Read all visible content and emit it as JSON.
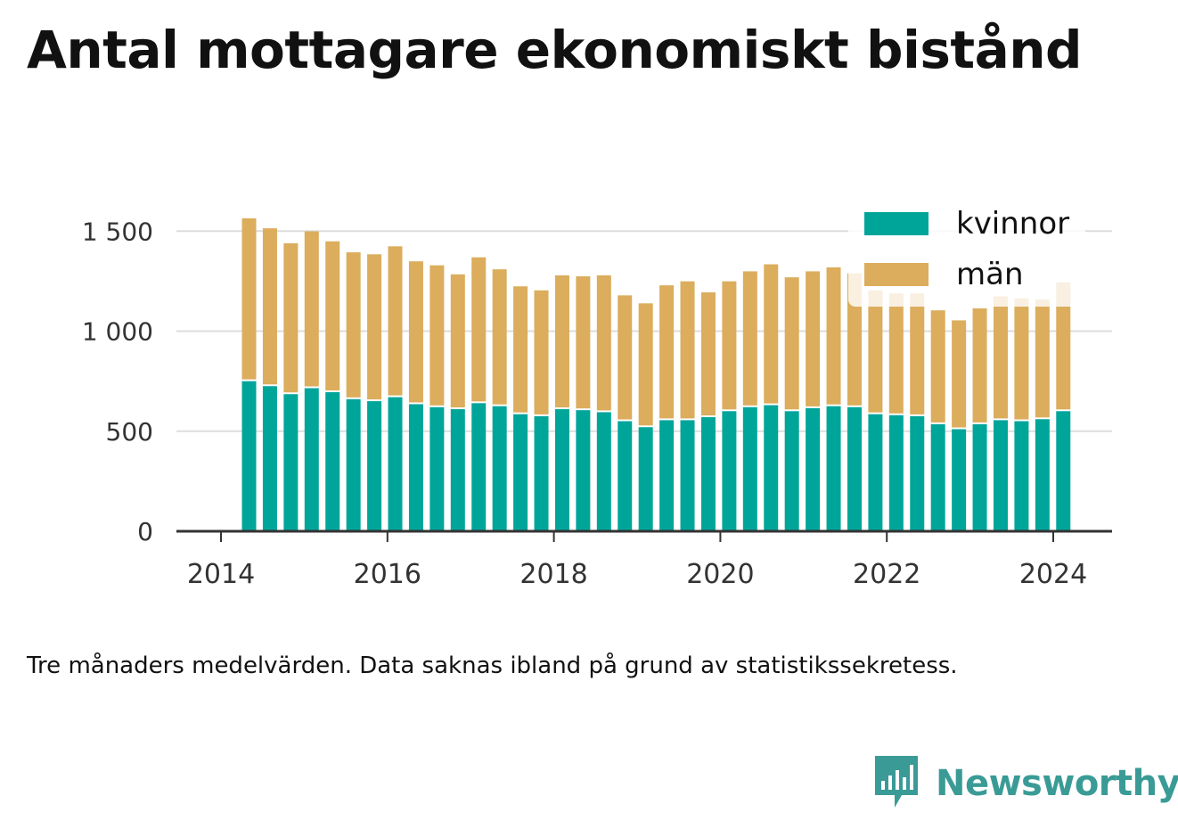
{
  "title": "Antal mottagare ekonomiskt bistånd",
  "note": "Tre månaders medelvärden. Data saknas ibland på grund av statistikssekretess.",
  "brand": {
    "name": "Newsworthy",
    "icon": "newsworthy-logo-icon"
  },
  "colors": {
    "kvinnor": "#00a59a",
    "man": "#dbad5c",
    "grid": "#dddddd",
    "axis": "#333333",
    "brand": "#3a9b96"
  },
  "chart_data": {
    "type": "bar",
    "stacked": true,
    "x_ticks": [
      "2014",
      "2016",
      "2018",
      "2020",
      "2022",
      "2024"
    ],
    "y_ticks": [
      "0",
      "500",
      "1 000",
      "1 500"
    ],
    "ylim": [
      0,
      1500
    ],
    "grid": true,
    "legend_position": "top-right",
    "categories": [
      "2014-05",
      "2014-08",
      "2014-11",
      "2015-02",
      "2015-05",
      "2015-08",
      "2015-11",
      "2016-02",
      "2016-05",
      "2016-08",
      "2016-11",
      "2017-02",
      "2017-05",
      "2017-08",
      "2017-11",
      "2018-02",
      "2018-05",
      "2018-08",
      "2018-11",
      "2019-02",
      "2019-05",
      "2019-08",
      "2019-11",
      "2020-02",
      "2020-05",
      "2020-08",
      "2020-11",
      "2021-02",
      "2021-05",
      "2021-08",
      "2021-11",
      "2022-02",
      "2022-05",
      "2022-08",
      "2022-11",
      "2023-02",
      "2023-05",
      "2023-08",
      "2023-11",
      "2024-02"
    ],
    "series": [
      {
        "name": "kvinnor",
        "values": [
          750,
          725,
          685,
          715,
          695,
          660,
          650,
          670,
          635,
          620,
          610,
          640,
          625,
          585,
          575,
          610,
          605,
          595,
          550,
          520,
          555,
          555,
          570,
          600,
          620,
          630,
          600,
          615,
          625,
          620,
          585,
          580,
          575,
          535,
          510,
          535,
          555,
          550,
          560,
          600
        ]
      },
      {
        "name": "män",
        "values": [
          805,
          780,
          745,
          775,
          745,
          725,
          725,
          745,
          705,
          700,
          665,
          720,
          675,
          630,
          620,
          660,
          660,
          675,
          620,
          610,
          665,
          685,
          615,
          640,
          670,
          695,
          660,
          675,
          685,
          660,
          610,
          600,
          605,
          560,
          535,
          570,
          610,
          605,
          590,
          635
        ]
      }
    ]
  }
}
